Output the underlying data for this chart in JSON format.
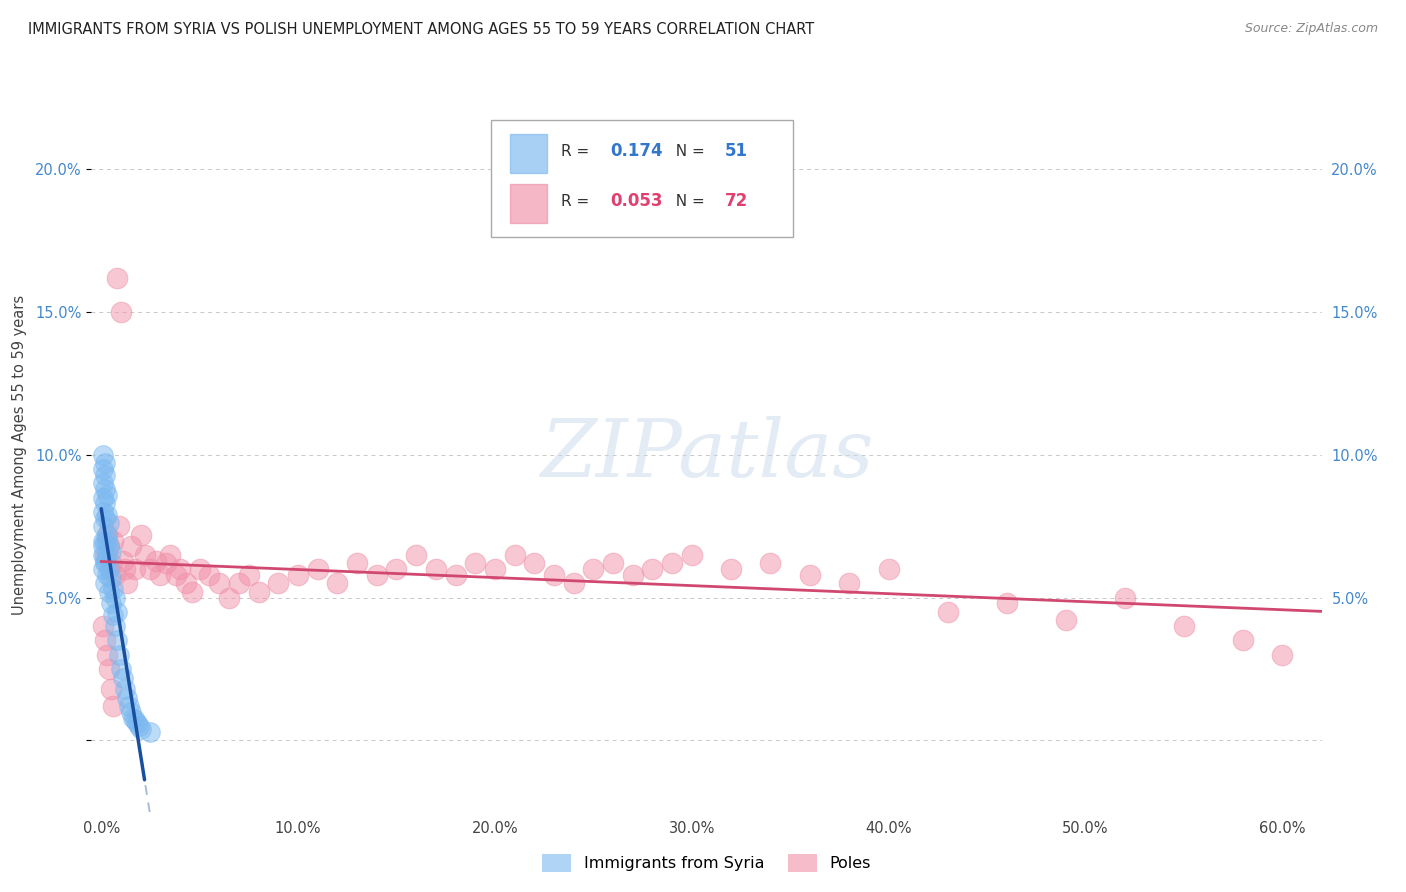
{
  "title": "IMMIGRANTS FROM SYRIA VS POLISH UNEMPLOYMENT AMONG AGES 55 TO 59 YEARS CORRELATION CHART",
  "source": "Source: ZipAtlas.com",
  "ylabel": "Unemployment Among Ages 55 to 59 years",
  "x_ticks": [
    0.0,
    0.1,
    0.2,
    0.3,
    0.4,
    0.5,
    0.6
  ],
  "x_tick_labels": [
    "0.0%",
    "10.0%",
    "20.0%",
    "30.0%",
    "40.0%",
    "50.0%",
    "60.0%"
  ],
  "y_ticks": [
    0.0,
    0.05,
    0.1,
    0.15,
    0.2
  ],
  "y_tick_labels": [
    "",
    "5.0%",
    "10.0%",
    "15.0%",
    "20.0%"
  ],
  "xlim": [
    -0.005,
    0.62
  ],
  "ylim": [
    -0.025,
    0.225
  ],
  "syria_R": "0.174",
  "syria_N": "51",
  "poles_R": "0.053",
  "poles_N": "72",
  "legend_labels": [
    "Immigrants from Syria",
    "Poles"
  ],
  "syria_color": "#7ab8f0",
  "poles_color": "#f090a8",
  "syria_line_color": "#1a4fa0",
  "poles_line_color": "#d04870",
  "trendline_dash_color": "#9ab0d8",
  "background_color": "#ffffff",
  "grid_color": "#c8c8c8",
  "syria_scatter_x": [
    0.001,
    0.001,
    0.001,
    0.001,
    0.001,
    0.001,
    0.001,
    0.001,
    0.001,
    0.001,
    0.002,
    0.002,
    0.002,
    0.002,
    0.002,
    0.002,
    0.002,
    0.002,
    0.002,
    0.003,
    0.003,
    0.003,
    0.003,
    0.003,
    0.003,
    0.004,
    0.004,
    0.004,
    0.004,
    0.005,
    0.005,
    0.005,
    0.006,
    0.006,
    0.007,
    0.007,
    0.008,
    0.008,
    0.009,
    0.01,
    0.011,
    0.012,
    0.013,
    0.014,
    0.015,
    0.016,
    0.017,
    0.018,
    0.019,
    0.02,
    0.025
  ],
  "syria_scatter_y": [
    0.06,
    0.065,
    0.07,
    0.075,
    0.08,
    0.085,
    0.09,
    0.095,
    0.1,
    0.068,
    0.055,
    0.062,
    0.07,
    0.078,
    0.083,
    0.088,
    0.093,
    0.097,
    0.063,
    0.058,
    0.065,
    0.072,
    0.079,
    0.086,
    0.07,
    0.052,
    0.06,
    0.068,
    0.076,
    0.048,
    0.057,
    0.066,
    0.044,
    0.053,
    0.04,
    0.05,
    0.035,
    0.045,
    0.03,
    0.025,
    0.022,
    0.018,
    0.015,
    0.012,
    0.01,
    0.008,
    0.007,
    0.006,
    0.005,
    0.004,
    0.003
  ],
  "poles_scatter_x": [
    0.002,
    0.003,
    0.004,
    0.005,
    0.006,
    0.007,
    0.008,
    0.009,
    0.01,
    0.011,
    0.012,
    0.013,
    0.015,
    0.017,
    0.02,
    0.022,
    0.025,
    0.028,
    0.03,
    0.033,
    0.035,
    0.038,
    0.04,
    0.043,
    0.046,
    0.05,
    0.055,
    0.06,
    0.065,
    0.07,
    0.075,
    0.08,
    0.09,
    0.1,
    0.11,
    0.12,
    0.13,
    0.14,
    0.15,
    0.16,
    0.17,
    0.18,
    0.19,
    0.2,
    0.21,
    0.22,
    0.23,
    0.24,
    0.25,
    0.26,
    0.27,
    0.28,
    0.29,
    0.3,
    0.32,
    0.34,
    0.36,
    0.38,
    0.4,
    0.43,
    0.46,
    0.49,
    0.52,
    0.55,
    0.58,
    0.6,
    0.001,
    0.002,
    0.003,
    0.004,
    0.005,
    0.006
  ],
  "poles_scatter_y": [
    0.065,
    0.072,
    0.068,
    0.062,
    0.07,
    0.058,
    0.162,
    0.075,
    0.15,
    0.063,
    0.06,
    0.055,
    0.068,
    0.06,
    0.072,
    0.065,
    0.06,
    0.063,
    0.058,
    0.062,
    0.065,
    0.058,
    0.06,
    0.055,
    0.052,
    0.06,
    0.058,
    0.055,
    0.05,
    0.055,
    0.058,
    0.052,
    0.055,
    0.058,
    0.06,
    0.055,
    0.062,
    0.058,
    0.06,
    0.065,
    0.06,
    0.058,
    0.062,
    0.06,
    0.065,
    0.062,
    0.058,
    0.055,
    0.06,
    0.062,
    0.058,
    0.06,
    0.062,
    0.065,
    0.06,
    0.062,
    0.058,
    0.055,
    0.06,
    0.045,
    0.048,
    0.042,
    0.05,
    0.04,
    0.035,
    0.03,
    0.04,
    0.035,
    0.03,
    0.025,
    0.018,
    0.012
  ],
  "watermark_text": "ZIPatlas",
  "watermark_color": "#c8d8ec",
  "watermark_alpha": 0.5
}
